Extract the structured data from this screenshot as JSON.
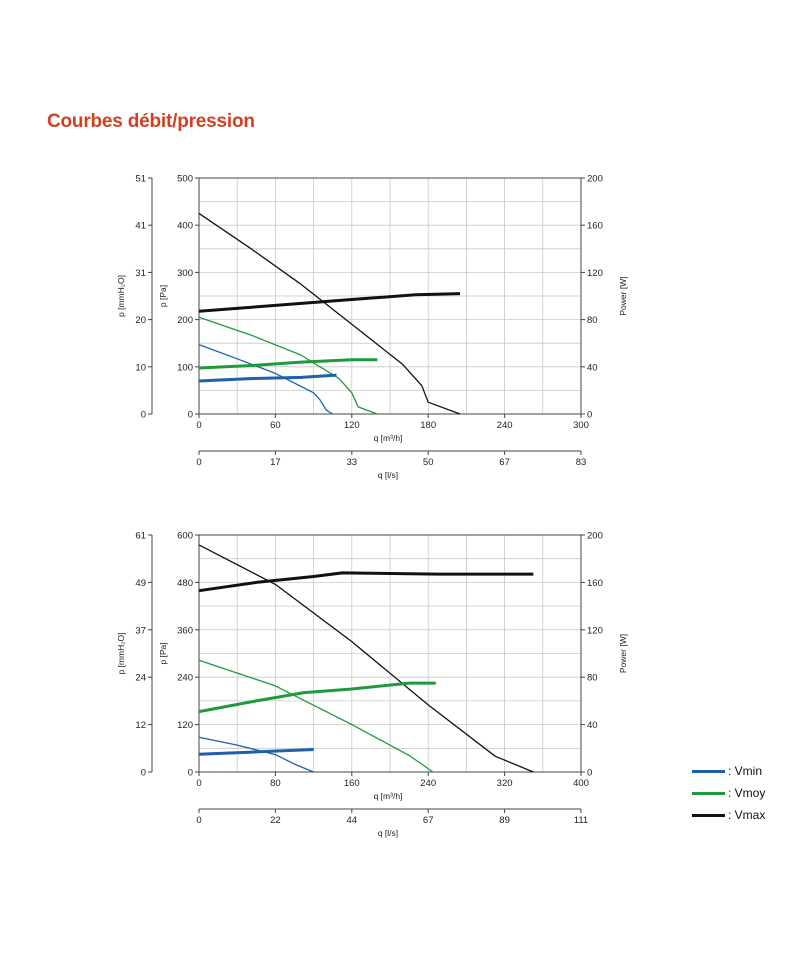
{
  "title": "Courbes débit/pression",
  "colors": {
    "Vmin": "#1f5fae",
    "Vmoy": "#1e9a3c",
    "Vmax": "#111111",
    "grid": "#c8c8c8"
  },
  "legend": [
    {
      "label": ": Vmin",
      "color": "#1f5fae"
    },
    {
      "label": ": Vmoy",
      "color": "#1e9a3c"
    },
    {
      "label": ": Vmax",
      "color": "#111111"
    }
  ],
  "chart_data": [
    {
      "type": "line",
      "xlabel": "q [m³/h]",
      "xlabel2": "q [l/s]",
      "ylabel": "p [Pa]",
      "ylabel2": "p [mmH₂O]",
      "ylabel_right": "Power [W]",
      "xlim": [
        0,
        300
      ],
      "ylim": [
        0,
        500
      ],
      "ylim_right": [
        0,
        200
      ],
      "x_ticks": [
        "0",
        "60",
        "120",
        "180",
        "240",
        "300"
      ],
      "x2_ticks": [
        "0",
        "17",
        "33",
        "50",
        "67",
        "83"
      ],
      "y_ticks": [
        "0",
        "100",
        "200",
        "300",
        "400",
        "500"
      ],
      "y2_ticks": [
        "0",
        "10",
        "20",
        "31",
        "41",
        "51"
      ],
      "yr_ticks": [
        "0",
        "40",
        "80",
        "120",
        "160",
        "200"
      ],
      "grid": true,
      "pressure_series": [
        {
          "name": "Vmin",
          "points": [
            [
              0,
              147
            ],
            [
              30,
              117
            ],
            [
              60,
              86
            ],
            [
              90,
              45
            ],
            [
              95,
              30
            ],
            [
              100,
              8
            ],
            [
              105,
              0
            ]
          ]
        },
        {
          "name": "Vmoy",
          "points": [
            [
              0,
              205
            ],
            [
              40,
              168
            ],
            [
              80,
              125
            ],
            [
              110,
              75
            ],
            [
              120,
              45
            ],
            [
              125,
              15
            ],
            [
              140,
              0
            ]
          ]
        },
        {
          "name": "Vmax",
          "points": [
            [
              0,
              425
            ],
            [
              40,
              352
            ],
            [
              80,
              275
            ],
            [
              120,
              190
            ],
            [
              160,
              105
            ],
            [
              175,
              60
            ],
            [
              180,
              25
            ],
            [
              205,
              0
            ]
          ]
        }
      ],
      "power_series": [
        {
          "name": "Vmin",
          "points": [
            [
              0,
              28
            ],
            [
              40,
              30
            ],
            [
              80,
              31
            ],
            [
              108,
              33
            ]
          ]
        },
        {
          "name": "Vmoy",
          "points": [
            [
              0,
              39
            ],
            [
              40,
              41
            ],
            [
              80,
              44
            ],
            [
              120,
              46
            ],
            [
              140,
              46
            ]
          ]
        },
        {
          "name": "Vmax",
          "points": [
            [
              0,
              87
            ],
            [
              60,
              92
            ],
            [
              120,
              97
            ],
            [
              170,
              101
            ],
            [
              205,
              102
            ]
          ]
        }
      ]
    },
    {
      "type": "line",
      "xlabel": "q [m³/h]",
      "xlabel2": "q [l/s]",
      "ylabel": "p [Pa]",
      "ylabel2": "p [mmH₂O]",
      "ylabel_right": "Power [W]",
      "xlim": [
        0,
        400
      ],
      "ylim": [
        0,
        600
      ],
      "ylim_right": [
        0,
        200
      ],
      "x_ticks": [
        "0",
        "80",
        "160",
        "240",
        "320",
        "400"
      ],
      "x2_ticks": [
        "0",
        "22",
        "44",
        "67",
        "89",
        "111"
      ],
      "y_ticks": [
        "0",
        "120",
        "240",
        "360",
        "480",
        "600"
      ],
      "y2_ticks": [
        "0",
        "12",
        "24",
        "37",
        "49",
        "61"
      ],
      "yr_ticks": [
        "0",
        "40",
        "80",
        "120",
        "160",
        "200"
      ],
      "grid": true,
      "pressure_series": [
        {
          "name": "Vmin",
          "points": [
            [
              0,
              88
            ],
            [
              40,
              68
            ],
            [
              80,
              44
            ],
            [
              100,
              20
            ],
            [
              120,
              0
            ]
          ]
        },
        {
          "name": "Vmoy",
          "points": [
            [
              0,
              283
            ],
            [
              80,
              218
            ],
            [
              160,
              120
            ],
            [
              220,
              42
            ],
            [
              245,
              0
            ]
          ]
        },
        {
          "name": "Vmax",
          "points": [
            [
              0,
              575
            ],
            [
              80,
              475
            ],
            [
              160,
              330
            ],
            [
              240,
              170
            ],
            [
              310,
              40
            ],
            [
              350,
              0
            ]
          ]
        }
      ],
      "power_series": [
        {
          "name": "Vmin",
          "points": [
            [
              0,
              15
            ],
            [
              60,
              17
            ],
            [
              120,
              19
            ]
          ]
        },
        {
          "name": "Vmoy",
          "points": [
            [
              0,
              51
            ],
            [
              60,
              60
            ],
            [
              110,
              67
            ],
            [
              160,
              70
            ],
            [
              220,
              75
            ],
            [
              248,
              75
            ]
          ]
        },
        {
          "name": "Vmax",
          "points": [
            [
              0,
              153
            ],
            [
              60,
              160
            ],
            [
              120,
              165
            ],
            [
              150,
              168
            ],
            [
              250,
              167
            ],
            [
              350,
              167
            ]
          ]
        }
      ]
    }
  ]
}
